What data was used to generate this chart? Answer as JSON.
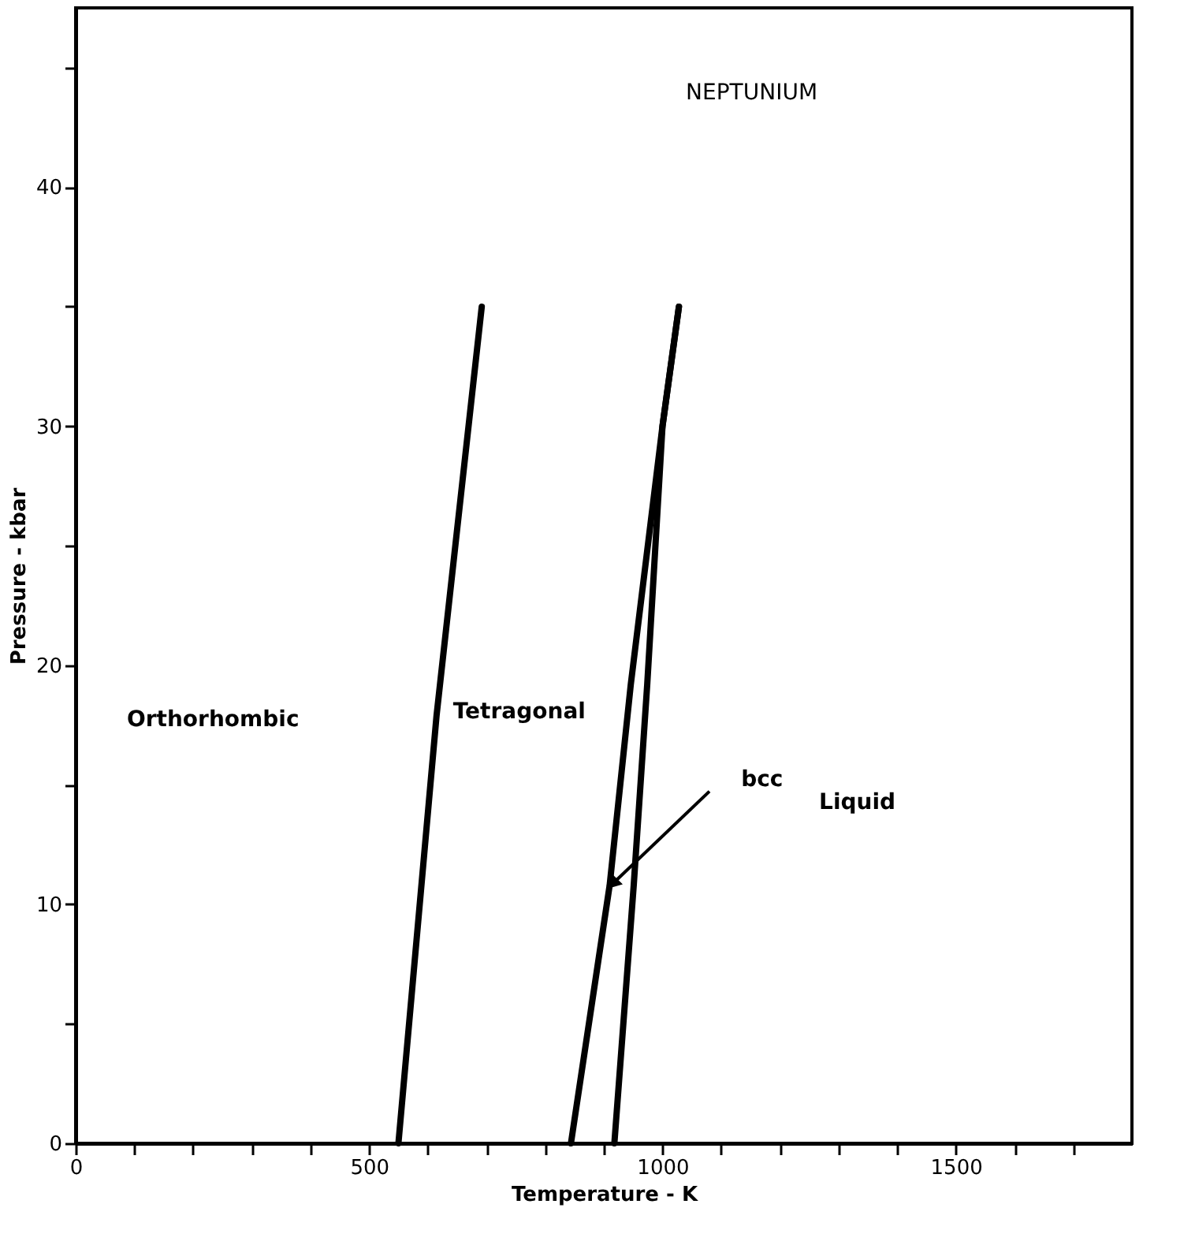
{
  "chart_data": {
    "type": "line",
    "xlabel": "Temperature - K",
    "ylabel": "Pressure - kbar",
    "xlim": [
      0,
      1800
    ],
    "ylim": [
      0,
      47.5
    ],
    "xticks": [
      0,
      {
        "value": 100,
        "label": null
      },
      {
        "value": 200,
        "label": null
      },
      {
        "value": 300,
        "label": null
      },
      {
        "value": 400,
        "label": null
      },
      500,
      {
        "value": 600,
        "label": null
      },
      {
        "value": 700,
        "label": null
      },
      {
        "value": 800,
        "label": null
      },
      {
        "value": 900,
        "label": null
      },
      1000,
      {
        "value": 1100,
        "label": null
      },
      {
        "value": 1200,
        "label": null
      },
      {
        "value": 1300,
        "label": null
      },
      {
        "value": 1400,
        "label": null
      },
      1500,
      {
        "value": 1600,
        "label": null
      },
      {
        "value": 1700,
        "label": null
      }
    ],
    "yticks": [
      0,
      {
        "value": 5,
        "label": null
      },
      10,
      {
        "value": 15,
        "label": null
      },
      20,
      {
        "value": 25,
        "label": null
      },
      30,
      {
        "value": 35,
        "label": null
      },
      40,
      {
        "value": 45,
        "label": null
      }
    ],
    "grid": false,
    "marker": "none",
    "line_style": "solid",
    "series": [
      {
        "color": "#000000",
        "x": [
          550,
          615,
          692
        ],
        "values": [
          0,
          17.9,
          35
        ]
      },
      {
        "color": "#000000",
        "x": [
          844,
          910,
          946,
          1000,
          1028
        ],
        "values": [
          0,
          10.8,
          19.2,
          30,
          35
        ]
      },
      {
        "color": "#000000",
        "x": [
          918,
          951,
          974,
          1000,
          1028
        ],
        "values": [
          0,
          10.8,
          19.2,
          30,
          35
        ]
      }
    ],
    "annotations": [
      "NEPTUNIUM",
      "Orthorhombic",
      "Tetragonal",
      "Liquid",
      "bcc"
    ]
  }
}
